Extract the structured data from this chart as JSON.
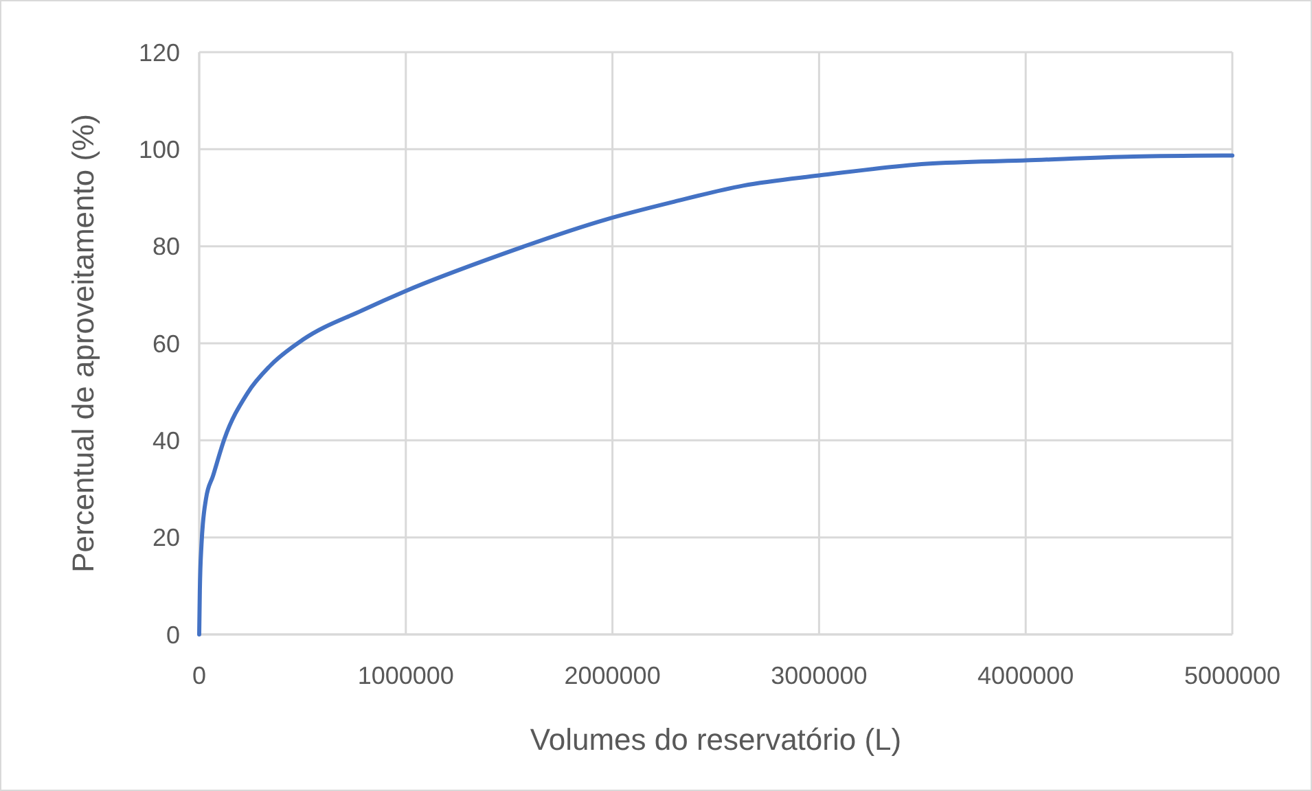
{
  "chart_data": {
    "type": "line",
    "xlabel": "Volumes do reservatório (L)",
    "ylabel": "Percentual de aproveitamento (%)",
    "series": [
      {
        "color": "#4472c4",
        "x": [
          0,
          3000,
          11000,
          33000,
          67000,
          122000,
          233000,
          344000,
          500000,
          789000,
          1000000,
          1455000,
          1967000,
          2300000,
          2633000,
          3000000,
          3522000,
          4000000,
          4522000,
          5000000
        ],
        "values": [
          0,
          9,
          18.5,
          28,
          32.7,
          40.3,
          49.7,
          55.4,
          60.7,
          66.8,
          70.8,
          78.2,
          85.5,
          89.2,
          92.5,
          94.6,
          97,
          97.7,
          98.5,
          98.7
        ]
      }
    ],
    "xlim": [
      0,
      5000000
    ],
    "xticks": [
      0,
      1000000,
      2000000,
      3000000,
      4000000,
      5000000
    ],
    "ylim": [
      0,
      120
    ],
    "yticks": [
      0,
      20,
      40,
      60,
      80,
      100,
      120
    ],
    "grid": true,
    "marker": "none",
    "line_style": "solid"
  }
}
